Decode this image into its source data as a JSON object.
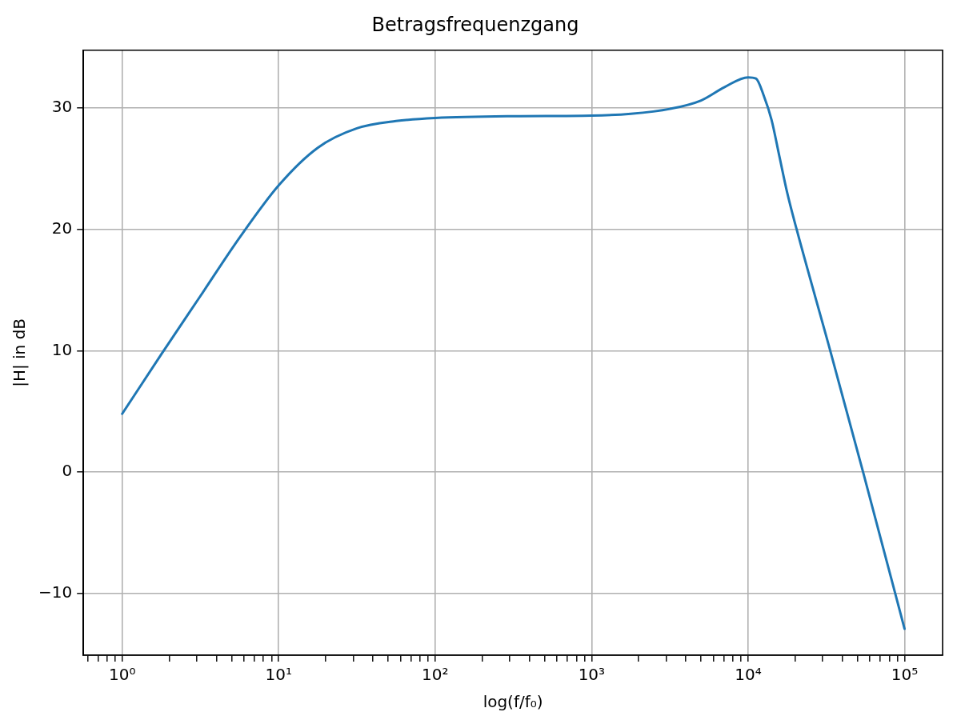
{
  "chart_data": {
    "type": "line",
    "title": "Betragsfrequenzgang",
    "xlabel": "log(f/f₀)",
    "ylabel": "|H| in dB",
    "log": "x",
    "grid": true,
    "legend": false,
    "marker": "none",
    "line_style": "solid",
    "xlim": [
      0.565,
      175000
    ],
    "ylim": [
      -15.07,
      34.73
    ],
    "xticks": [
      {
        "value": 0.6,
        "label": null
      },
      {
        "value": 0.7,
        "label": null
      },
      {
        "value": 0.8,
        "label": null
      },
      {
        "value": 0.9,
        "label": null
      },
      {
        "value": 1,
        "label": "10⁰"
      },
      {
        "value": 2,
        "label": null
      },
      {
        "value": 3,
        "label": null
      },
      {
        "value": 4,
        "label": null
      },
      {
        "value": 5,
        "label": null
      },
      {
        "value": 6,
        "label": null
      },
      {
        "value": 7,
        "label": null
      },
      {
        "value": 8,
        "label": null
      },
      {
        "value": 9,
        "label": null
      },
      {
        "value": 10,
        "label": "10¹"
      },
      {
        "value": 20,
        "label": null
      },
      {
        "value": 30,
        "label": null
      },
      {
        "value": 40,
        "label": null
      },
      {
        "value": 50,
        "label": null
      },
      {
        "value": 60,
        "label": null
      },
      {
        "value": 70,
        "label": null
      },
      {
        "value": 80,
        "label": null
      },
      {
        "value": 90,
        "label": null
      },
      {
        "value": 100,
        "label": "10²"
      },
      {
        "value": 200,
        "label": null
      },
      {
        "value": 300,
        "label": null
      },
      {
        "value": 400,
        "label": null
      },
      {
        "value": 500,
        "label": null
      },
      {
        "value": 600,
        "label": null
      },
      {
        "value": 700,
        "label": null
      },
      {
        "value": 800,
        "label": null
      },
      {
        "value": 900,
        "label": null
      },
      {
        "value": 1000,
        "label": "10³"
      },
      {
        "value": 2000,
        "label": null
      },
      {
        "value": 3000,
        "label": null
      },
      {
        "value": 4000,
        "label": null
      },
      {
        "value": 5000,
        "label": null
      },
      {
        "value": 6000,
        "label": null
      },
      {
        "value": 7000,
        "label": null
      },
      {
        "value": 8000,
        "label": null
      },
      {
        "value": 9000,
        "label": null
      },
      {
        "value": 10000,
        "label": "10⁴"
      },
      {
        "value": 20000,
        "label": null
      },
      {
        "value": 30000,
        "label": null
      },
      {
        "value": 40000,
        "label": null
      },
      {
        "value": 50000,
        "label": null
      },
      {
        "value": 60000,
        "label": null
      },
      {
        "value": 70000,
        "label": null
      },
      {
        "value": 80000,
        "label": null
      },
      {
        "value": 90000,
        "label": null
      },
      {
        "value": 100000,
        "label": "10⁵"
      }
    ],
    "yticks": [
      {
        "value": -10,
        "label": "−10"
      },
      0,
      10,
      20,
      30
    ],
    "x": [
      1,
      1.778,
      3.162,
      5.623,
      10,
      17.78,
      31.62,
      56.23,
      100,
      316.2,
      1000,
      1778,
      3162,
      5012,
      7079,
      10000,
      11220,
      12589,
      14125,
      15849,
      17783,
      20417,
      33497,
      54325,
      100000
    ],
    "series": [
      {
        "color": "#1f77b4",
        "values": [
          4.8,
          9.7,
          14.5,
          19.3,
          23.6,
          26.7,
          28.3,
          28.9,
          29.15,
          29.3,
          29.35,
          29.5,
          29.9,
          30.6,
          31.7,
          32.5,
          32.4,
          31.0,
          29.0,
          26.0,
          23.0,
          20.0,
          10.0,
          0.0,
          -12.9
        ]
      }
    ]
  }
}
